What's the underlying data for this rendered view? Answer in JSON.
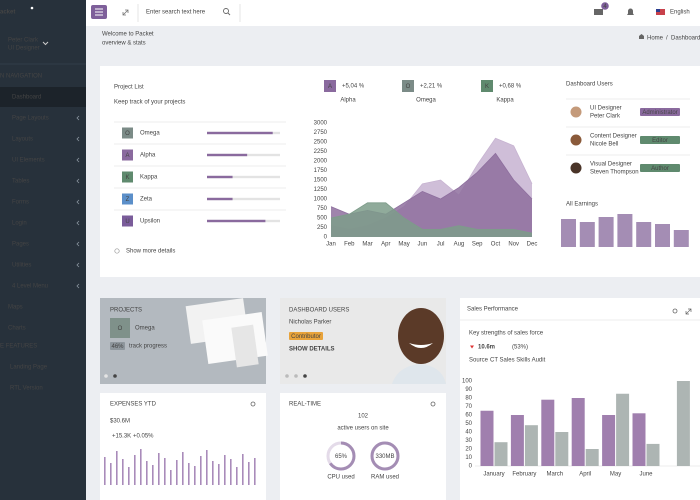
{
  "sidebar": {
    "logo": "acket",
    "user": {
      "name": "Peter Clark",
      "role": "UI Designer"
    },
    "sections": [
      {
        "title": "N NAVIGATION",
        "items": [
          "Dashboard",
          "Page Layouts",
          "Layouts",
          "UI Elements",
          "Tables",
          "Forms",
          "Login",
          "Pages",
          "Utilities",
          "4 Level Menu",
          "Maps",
          "Charts"
        ]
      },
      {
        "title": "E FEATURES",
        "items": [
          "Landing Page",
          "RTL Version"
        ]
      }
    ]
  },
  "topbar": {
    "search_placeholder": "Enter search text here",
    "mail_badge": 4,
    "language": "English"
  },
  "header": {
    "title": "Welcome to Packet",
    "subtitle": "overview & stats",
    "breadcrumb": [
      "Home",
      "Dashboard"
    ]
  },
  "project_list": {
    "title": "Project List",
    "subtitle": "Keep track of your projects",
    "rows": [
      {
        "letter": "O",
        "name": "Omega",
        "progress": 90,
        "color": "#7b8b87"
      },
      {
        "letter": "A",
        "name": "Alpha",
        "progress": 55,
        "color": "#8a6a9e"
      },
      {
        "letter": "K",
        "name": "Kappa",
        "progress": 35,
        "color": "#5f8a6e"
      },
      {
        "letter": "Z",
        "name": "Zeta",
        "progress": 35,
        "color": "#5b8fc9"
      },
      {
        "letter": "U",
        "name": "Upsilon",
        "progress": 80,
        "color": "#7a5c9a"
      }
    ],
    "link": "Show more details"
  },
  "stats": [
    {
      "letter": "A",
      "value": "+5,04 %",
      "name": "Alpha",
      "color": "#8a6a9e"
    },
    {
      "letter": "O",
      "value": "+2,21 %",
      "name": "Omega",
      "color": "#7b8b87"
    },
    {
      "letter": "K",
      "value": "+0,68 %",
      "name": "Kappa",
      "color": "#5f8a6e"
    }
  ],
  "area_chart": {
    "type": "area",
    "categories": [
      "Jan",
      "Feb",
      "Mar",
      "Apr",
      "May",
      "Jun",
      "Jul",
      "Aug",
      "Sep",
      "Oct",
      "Nov",
      "Dec"
    ],
    "series": [
      {
        "color": "#c7b3d1",
        "values": [
          300,
          200,
          300,
          500,
          800,
          1400,
          1500,
          1100,
          1900,
          2600,
          2400,
          1400
        ]
      },
      {
        "color": "#8e6f9e",
        "values": [
          800,
          600,
          700,
          600,
          900,
          1200,
          1000,
          1300,
          1700,
          2200,
          1500,
          1000
        ]
      },
      {
        "color": "#7d9c8a",
        "values": [
          500,
          600,
          900,
          900,
          500,
          200,
          200,
          300,
          200,
          200,
          200,
          100
        ]
      }
    ],
    "ylim": [
      0,
      3000
    ],
    "yticks": [
      0,
      250,
      500,
      750,
      1000,
      1250,
      1500,
      1750,
      2000,
      2250,
      2500,
      2750,
      3000
    ],
    "grid": false
  },
  "dashboard_users": {
    "title": "Dashboard Users",
    "users": [
      {
        "role": "UI Designer",
        "name": "Peter Clark",
        "badge": "Administrator",
        "badge_color": "#8a6a9e"
      },
      {
        "role": "Content Designer",
        "name": "Nicole Bell",
        "badge": "Editor",
        "badge_color": "#5f8a6e"
      },
      {
        "role": "Visual Designer",
        "name": "Steven Thompson",
        "badge": "Author",
        "badge_color": "#5f8a6e"
      }
    ]
  },
  "earnings": {
    "type": "bar",
    "title": "All Earnings",
    "values": [
      28,
      25,
      30,
      33,
      25,
      23,
      17
    ],
    "color": "#a48db4"
  },
  "projects_card": {
    "title": "PROJECTS",
    "letter": "O",
    "name": "Omega",
    "progress_label": "46%",
    "progress_text": "track progress"
  },
  "users_card": {
    "title": "DASHBOARD USERS",
    "name": "Nicholas Parker",
    "badge": "Contributor",
    "link": "SHOW DETAILS"
  },
  "sales": {
    "type": "bar",
    "title": "Sales Performance",
    "subtitle": "Key strengths of sales force",
    "kpi": "10.6m",
    "kpi_change": "(53%)",
    "source_label": "Source",
    "source": "CT Sales Skills Audit",
    "categories": [
      "January",
      "February",
      "March",
      "April",
      "May",
      "June",
      null
    ],
    "series": [
      {
        "color": "#a07fae",
        "values": [
          65,
          60,
          78,
          80,
          60,
          62,
          null
        ]
      },
      {
        "color": "#adb5b3",
        "values": [
          28,
          48,
          40,
          20,
          85,
          26,
          100
        ]
      }
    ],
    "ylim": [
      0,
      100
    ],
    "yticks": [
      0,
      10,
      20,
      30,
      40,
      50,
      60,
      70,
      80,
      90,
      100
    ],
    "grid": false
  },
  "expenses": {
    "type": "bar",
    "title": "EXPENSES YTD",
    "value": "$30.6M",
    "change_abs": "+15.3K",
    "change_pct": "+0.05%",
    "color": "#a98bba",
    "values": [
      28,
      22,
      34,
      26,
      18,
      30,
      36,
      24,
      20,
      32,
      27,
      15,
      25,
      33,
      22,
      19,
      29,
      35,
      24,
      21,
      30,
      26,
      18,
      31,
      23,
      27
    ]
  },
  "realtime": {
    "title": "REAL-TIME",
    "users": 102,
    "users_label": "active users on site",
    "gauges": [
      {
        "value": 65,
        "value_label": "65%",
        "name": "CPU used"
      },
      {
        "value_label": "330MB",
        "name": "RAM used"
      }
    ]
  }
}
